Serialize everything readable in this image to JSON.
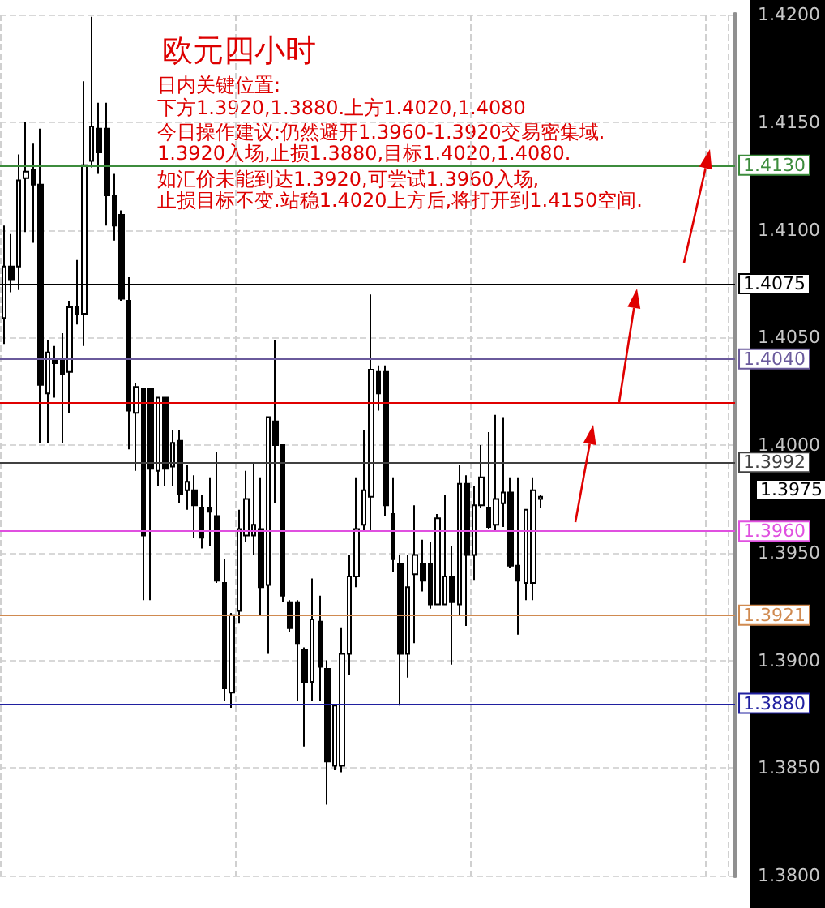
{
  "chart_data": {
    "type": "candlestick",
    "title": "欧元四小时",
    "annotations": [
      "日内关键位置:",
      "下方1.3920,1.3880.上方1.4020,1.4080",
      "今日操作建议:仍然避开1.3960-1.3920交易密集域.",
      "1.3920入场,止损1.3880,目标1.4020,1.4080.",
      "如汇价未能到达1.3920,可尝试1.3960入场,",
      "止损目标不变.站稳1.4020上方后,将打开到1.4150空间.",
      "1.3975"
    ],
    "categories": [
      null,
      null,
      null,
      null,
      null,
      null,
      null,
      null,
      null,
      null,
      null,
      null,
      null,
      null,
      null,
      null,
      null,
      null,
      null,
      null,
      null,
      null,
      null,
      null,
      null,
      null,
      null,
      null,
      null,
      null,
      null,
      null,
      null,
      null,
      null,
      null,
      null,
      null,
      null,
      null,
      null,
      null,
      null,
      null,
      null,
      null,
      null,
      null,
      null,
      null,
      null,
      null,
      null,
      null,
      null,
      null,
      null,
      null,
      null,
      null,
      null,
      null,
      null,
      null,
      null,
      null,
      null,
      null,
      null,
      null,
      null,
      null,
      null,
      null,
      null,
      null,
      null,
      null,
      null,
      null,
      null,
      null,
      null,
      null,
      null,
      null,
      null,
      null,
      null,
      null,
      null,
      null,
      null,
      null,
      null,
      null,
      null,
      null,
      null,
      null
    ],
    "ohlc": [
      [
        1.4059,
        1.4102,
        1.4047,
        1.4083
      ],
      [
        1.4083,
        1.4098,
        1.4071,
        1.4077
      ],
      [
        1.4083,
        1.4135,
        1.4072,
        1.4123
      ],
      [
        1.4124,
        1.415,
        1.4099,
        1.4127
      ],
      [
        1.4128,
        1.414,
        1.4094,
        1.4121
      ],
      [
        1.4121,
        1.4147,
        1.4001,
        1.4028
      ],
      [
        1.4024,
        1.4049,
        1.4001,
        1.4043
      ],
      [
        1.404,
        1.4046,
        1.4022,
        1.4038
      ],
      [
        1.404,
        1.4052,
        1.4001,
        1.4033
      ],
      [
        1.4034,
        1.4067,
        1.4015,
        1.4064
      ],
      [
        1.4064,
        1.4086,
        1.4056,
        1.4061
      ],
      [
        1.4061,
        1.4169,
        1.4046,
        1.413
      ],
      [
        1.4132,
        1.4199,
        1.4129,
        1.4148
      ],
      [
        1.4147,
        1.4159,
        1.4126,
        1.4136
      ],
      [
        1.4147,
        1.4159,
        1.4102,
        1.4116
      ],
      [
        1.4116,
        1.4126,
        1.4095,
        1.4102
      ],
      [
        1.4107,
        1.4109,
        1.4067,
        1.4068
      ],
      [
        1.4067,
        1.4078,
        1.3998,
        1.4016
      ],
      [
        1.4015,
        1.4029,
        1.3988,
        1.4027
      ],
      [
        1.4026,
        1.4026,
        1.3928,
        1.3958
      ],
      [
        1.4026,
        1.4026,
        1.3928,
        1.3989
      ],
      [
        1.3988,
        1.4022,
        1.3981,
        1.4022
      ],
      [
        1.4022,
        1.4022,
        1.3981,
        1.3989
      ],
      [
        1.399,
        1.4007,
        1.3981,
        1.4001
      ],
      [
        1.4002,
        1.4007,
        1.3973,
        1.3977
      ],
      [
        1.3979,
        1.3991,
        1.397,
        1.3983
      ],
      [
        1.3979,
        1.3986,
        1.3957,
        1.3972
      ],
      [
        1.3971,
        1.3977,
        1.3952,
        1.3957
      ],
      [
        1.3971,
        1.3985,
        1.3953,
        1.3969
      ],
      [
        1.3967,
        1.3997,
        1.3936,
        1.3937
      ],
      [
        1.3936,
        1.3947,
        1.3881,
        1.3887
      ],
      [
        1.3885,
        1.3922,
        1.3878,
        1.3921
      ],
      [
        1.3923,
        1.397,
        1.3917,
        1.3961
      ],
      [
        1.3958,
        1.3988,
        1.3955,
        1.3975
      ],
      [
        1.3958,
        1.3992,
        1.3949,
        1.3963
      ],
      [
        1.3961,
        1.3985,
        1.3921,
        1.3934
      ],
      [
        1.3935,
        1.4013,
        1.3903,
        1.4013
      ],
      [
        1.4011,
        1.4049,
        1.3973,
        1.4
      ],
      [
        1.4,
        1.4,
        1.3927,
        1.393
      ],
      [
        1.3927,
        1.3928,
        1.3913,
        1.3915
      ],
      [
        1.3927,
        1.3928,
        1.3881,
        1.3908
      ],
      [
        1.3905,
        1.3906,
        1.386,
        1.389
      ],
      [
        1.389,
        1.3938,
        1.3881,
        1.3919
      ],
      [
        1.3918,
        1.393,
        1.3881,
        1.3897
      ],
      [
        1.3896,
        1.39,
        1.3833,
        1.3853
      ],
      [
        1.3851,
        1.3879,
        1.3849,
        1.3879
      ],
      [
        1.3851,
        1.3915,
        1.3848,
        1.3903
      ],
      [
        1.3903,
        1.3949,
        1.3893,
        1.3939
      ],
      [
        1.3939,
        1.3985,
        1.3934,
        1.3961
      ],
      [
        1.3963,
        1.4007,
        1.396,
        1.3979
      ],
      [
        1.3976,
        1.407,
        1.396,
        1.4035
      ],
      [
        1.4034,
        1.4037,
        1.4016,
        1.4024
      ],
      [
        1.4034,
        1.4037,
        1.3967,
        1.3972
      ],
      [
        1.3968,
        1.3985,
        1.3941,
        1.3947
      ],
      [
        1.3945,
        1.3949,
        1.3879,
        1.3903
      ],
      [
        1.3903,
        1.3949,
        1.3892,
        1.3934
      ],
      [
        1.394,
        1.3972,
        1.3908,
        1.3949
      ],
      [
        1.3945,
        1.3956,
        1.3932,
        1.3937
      ],
      [
        1.3945,
        1.3955,
        1.3924,
        1.3926
      ],
      [
        1.3926,
        1.3968,
        1.3926,
        1.3966
      ],
      [
        1.3926,
        1.3977,
        1.3926,
        1.3939
      ],
      [
        1.3939,
        1.3953,
        1.3898,
        1.3927
      ],
      [
        1.3926,
        1.3991,
        1.3921,
        1.3982
      ],
      [
        1.3982,
        1.3986,
        1.3916,
        1.3949
      ],
      [
        1.3949,
        1.3981,
        1.3937,
        1.3972
      ],
      [
        1.3972,
        1.4,
        1.3971,
        1.3985
      ],
      [
        1.3971,
        1.4006,
        1.3961,
        1.3962
      ],
      [
        1.3963,
        1.4014,
        1.396,
        1.3975
      ],
      [
        1.3973,
        1.4013,
        1.3962,
        1.3978
      ],
      [
        1.3978,
        1.3985,
        1.3943,
        1.3944
      ],
      [
        1.3944,
        1.3985,
        1.3912,
        1.3937
      ],
      [
        1.3936,
        1.397,
        1.3928,
        1.397
      ],
      [
        1.3936,
        1.3985,
        1.3928,
        1.3979
      ],
      [
        1.3975,
        1.3977,
        1.3971,
        1.3976
      ],
      null,
      null,
      null,
      null,
      null,
      null,
      null,
      null,
      null,
      null,
      null,
      null,
      null,
      null,
      null,
      null,
      null,
      null,
      null,
      null,
      null,
      null,
      null,
      null,
      null,
      null
    ],
    "ylim": [
      1.38,
      1.42
    ],
    "yticks": [
      {
        "value": 1.38,
        "label": "1.3800"
      },
      {
        "value": 1.385,
        "label": "1.3850"
      },
      {
        "value": 1.39,
        "label": "1.3900"
      },
      {
        "value": 1.395,
        "label": "1.3950"
      },
      {
        "value": 1.4,
        "label": "1.4000"
      },
      {
        "value": 1.405,
        "label": "1.4050"
      },
      {
        "value": 1.41,
        "label": "1.4100"
      },
      {
        "value": 1.415,
        "label": "1.4150"
      },
      {
        "value": 1.42,
        "label": "1.4200"
      }
    ],
    "ref_lines": [
      {
        "axis": "y",
        "value": 1.413,
        "label": "1.4130",
        "color": "#3c8c3c"
      },
      {
        "axis": "y",
        "value": 1.4075,
        "label": "1.4075",
        "color": "#000000"
      },
      {
        "axis": "y",
        "value": 1.404,
        "label": "1.4040",
        "color": "#6a5a9c"
      },
      {
        "axis": "y",
        "value": 1.402,
        "color": "#e00000"
      },
      {
        "axis": "y",
        "value": 1.3992,
        "label": "1.3992",
        "color": "#404040"
      },
      {
        "axis": "y",
        "value": 1.396,
        "label": "1.3960",
        "color": "#e050e0"
      },
      {
        "axis": "y",
        "value": 1.3921,
        "label": "1.3921",
        "color": "#d08a50"
      },
      {
        "axis": "y",
        "value": 1.388,
        "label": "1.3880",
        "color": "#2020a0"
      }
    ],
    "grid": true,
    "tick_labels": "y"
  }
}
